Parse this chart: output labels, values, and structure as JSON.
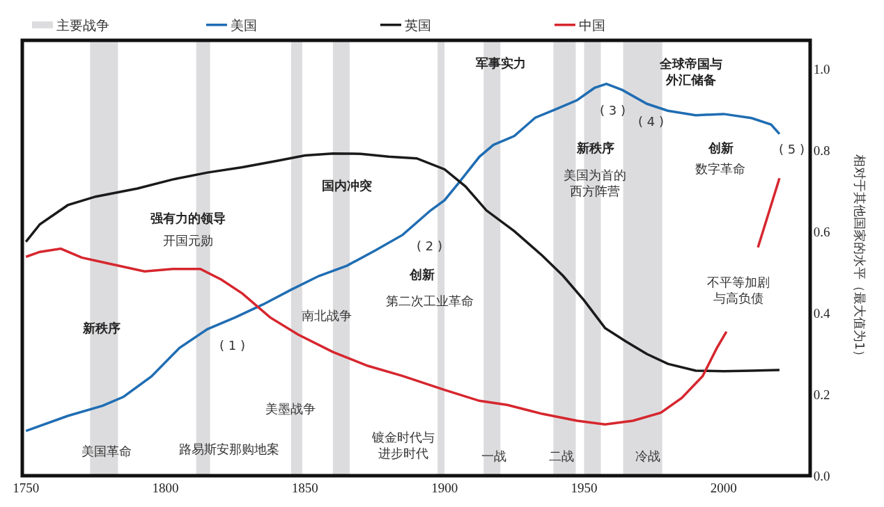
{
  "chart_data": {
    "type": "line",
    "ylabel": "相对于其他国家的水平（最大值为1）",
    "xlim": [
      1748.7,
      2031
    ],
    "xticks": [
      1750,
      1800,
      1850,
      1900,
      1950,
      2000
    ],
    "ylim": [
      0,
      1.07
    ],
    "yticks": [
      {
        "value": 0,
        "label": "0.0"
      },
      {
        "value": 0.2,
        "label": "0.2"
      },
      {
        "value": 0.4,
        "label": "0.4"
      },
      {
        "value": 0.6,
        "label": "0.6"
      },
      {
        "value": 0.8,
        "label": "0.8"
      },
      {
        "value": 1,
        "label": "1.0"
      }
    ],
    "grid": false,
    "legend": "top",
    "marker": "none",
    "line_style": "solid",
    "series": [
      {
        "name": "美国",
        "color": "#1f6db3",
        "x": [
          1750,
          1765,
          1777.5,
          1785,
          1795,
          1805,
          1815,
          1825,
          1835,
          1845,
          1855,
          1865,
          1875,
          1885,
          1895,
          1900,
          1905,
          1912.5,
          1917.5,
          1925,
          1932.5,
          1940,
          1947.5,
          1953.7,
          1958,
          1963.7,
          1972.5,
          1980,
          1990,
          2000,
          2010,
          2017,
          2020
        ],
        "values": [
          0.11,
          0.147,
          0.172,
          0.194,
          0.244,
          0.314,
          0.36,
          0.389,
          0.421,
          0.457,
          0.491,
          0.516,
          0.553,
          0.592,
          0.652,
          0.677,
          0.719,
          0.784,
          0.813,
          0.835,
          0.88,
          0.901,
          0.923,
          0.953,
          0.963,
          0.948,
          0.914,
          0.897,
          0.886,
          0.889,
          0.879,
          0.863,
          0.84
        ]
      },
      {
        "name": "英国",
        "color": "#1a1a1a",
        "x": [
          1750,
          1755,
          1765,
          1775,
          1790,
          1802.5,
          1815,
          1827.5,
          1840,
          1850,
          1860,
          1870,
          1880,
          1890,
          1900,
          1907.5,
          1915,
          1925,
          1935,
          1942.5,
          1950,
          1957.5,
          1965,
          1972.5,
          1980,
          1990,
          2000,
          2010,
          2020
        ],
        "values": [
          0.575,
          0.618,
          0.665,
          0.686,
          0.706,
          0.728,
          0.745,
          0.758,
          0.774,
          0.787,
          0.792,
          0.791,
          0.784,
          0.78,
          0.753,
          0.711,
          0.652,
          0.601,
          0.541,
          0.491,
          0.431,
          0.363,
          0.33,
          0.299,
          0.275,
          0.258,
          0.257,
          0.258,
          0.26
        ]
      },
      {
        "name": "中国",
        "color": "#d6262e",
        "x": [
          1750,
          1755,
          1762.5,
          1770,
          1780,
          1792.5,
          1802.5,
          1812.5,
          1820,
          1827.5,
          1837.5,
          1847.5,
          1860,
          1872.5,
          1885,
          1900,
          1912.5,
          1922.5,
          1935,
          1947.5,
          1957.5,
          1967.5,
          1977.5,
          1985,
          1992.5,
          1997.5,
          2001,
          2007,
          2012.3,
          2020
        ],
        "values": [
          0.538,
          0.55,
          0.558,
          0.536,
          0.521,
          0.502,
          0.508,
          0.508,
          0.482,
          0.448,
          0.389,
          0.347,
          0.304,
          0.27,
          0.245,
          0.211,
          0.184,
          0.174,
          0.152,
          0.135,
          0.126,
          0.135,
          0.155,
          0.191,
          0.245,
          0.313,
          0.354,
          null,
          0.561,
          0.731
        ]
      }
    ],
    "bands": [
      {
        "axis": "x",
        "from": 1773,
        "to": 1783,
        "label": "主要战争",
        "color": "#dcdcde"
      },
      {
        "axis": "x",
        "from": 1811,
        "to": 1816,
        "color": "#dcdcde"
      },
      {
        "axis": "x",
        "from": 1845,
        "to": 1849,
        "color": "#dcdcde"
      },
      {
        "axis": "x",
        "from": 1860,
        "to": 1866,
        "color": "#dcdcde"
      },
      {
        "axis": "x",
        "from": 1897.5,
        "to": 1900,
        "color": "#dcdcde"
      },
      {
        "axis": "x",
        "from": 1914,
        "to": 1920,
        "color": "#dcdcde"
      },
      {
        "axis": "x",
        "from": 1939,
        "to": 1947,
        "color": "#dcdcde"
      },
      {
        "axis": "x",
        "from": 1950,
        "to": 1956,
        "color": "#dcdcde"
      },
      {
        "axis": "x",
        "from": 1964,
        "to": 1978,
        "color": "#dcdcde"
      }
    ],
    "annotations": [
      "新秩序",
      "强有力的领导",
      "开国元勋",
      "国内冲突",
      "创新",
      "第二次工业革命",
      "南北战争",
      "( 1 )",
      "( 2 )",
      "军事实力",
      "全球帝国与外汇储备",
      "( 3 )",
      "( 4 )",
      "新秩序",
      "美国为首的西方阵营",
      "创新",
      "数字革命",
      "( 5 )",
      "不平等加剧与高负债",
      "美墨战争",
      "美国革命",
      "路易斯安那购地案",
      "镀金时代与进步时代",
      "一战",
      "二战",
      "冷战"
    ]
  }
}
